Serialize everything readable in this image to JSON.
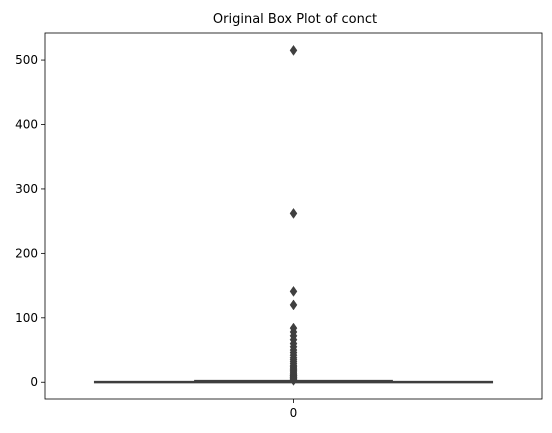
{
  "chart_data": {
    "type": "box",
    "title": "Original Box Plot of conct",
    "xlabel": "",
    "ylabel": "",
    "categories": [
      "0"
    ],
    "x_tick_labels": [
      "0"
    ],
    "y_tick_labels": [
      "0",
      "100",
      "200",
      "300",
      "400",
      "500"
    ],
    "y_ticks": [
      0,
      100,
      200,
      300,
      400,
      500
    ],
    "ylim": [
      -26,
      542
    ],
    "grid": false,
    "box": {
      "q1": 0.0,
      "median": 0.3,
      "q3": 1.0,
      "whisker_low": 0.0,
      "whisker_high": 2.5
    },
    "outliers": [
      515,
      262,
      141,
      120,
      84,
      78,
      72,
      66,
      60,
      55,
      50,
      46,
      42,
      38,
      35,
      32,
      29,
      26,
      24,
      22,
      20,
      18,
      16,
      14,
      12,
      11,
      10,
      9,
      8,
      7,
      6,
      5,
      4,
      3
    ],
    "colors": {
      "box_line": "#3f3f3f",
      "outlier": "#3f3f3f",
      "axis": "#000000"
    },
    "marker": "diamond"
  }
}
